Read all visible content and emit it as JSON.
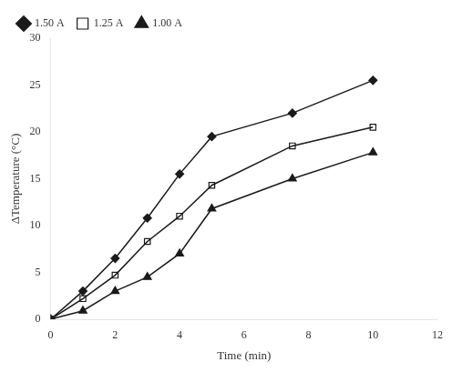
{
  "chart_data": {
    "type": "line",
    "xlabel": "Time (min)",
    "ylabel": "ΔTemperature (°C)",
    "x": [
      0,
      1,
      2,
      3,
      4,
      5,
      7.5,
      10
    ],
    "series": [
      {
        "name": "1.50 A",
        "color": "#1a1a1a",
        "marker": "diamond",
        "values": [
          0,
          3.0,
          6.5,
          10.8,
          15.5,
          19.5,
          22.0,
          25.5
        ]
      },
      {
        "name": "1.25 A",
        "color": "#1a1a1a",
        "marker": "square-open",
        "values": [
          0,
          2.2,
          4.7,
          8.3,
          11.0,
          14.3,
          18.5,
          20.5
        ]
      },
      {
        "name": "1.00 A",
        "color": "#1a1a1a",
        "marker": "triangle",
        "values": [
          0,
          0.9,
          3.0,
          4.5,
          7.0,
          11.8,
          15.0,
          17.8
        ]
      }
    ],
    "xlim": [
      0,
      12
    ],
    "ylim": [
      0,
      30
    ],
    "xticks": [
      0,
      2,
      4,
      6,
      8,
      10,
      12
    ],
    "yticks": [
      0,
      5,
      10,
      15,
      20,
      25,
      30
    ],
    "grid": false,
    "legend": "upper left"
  }
}
